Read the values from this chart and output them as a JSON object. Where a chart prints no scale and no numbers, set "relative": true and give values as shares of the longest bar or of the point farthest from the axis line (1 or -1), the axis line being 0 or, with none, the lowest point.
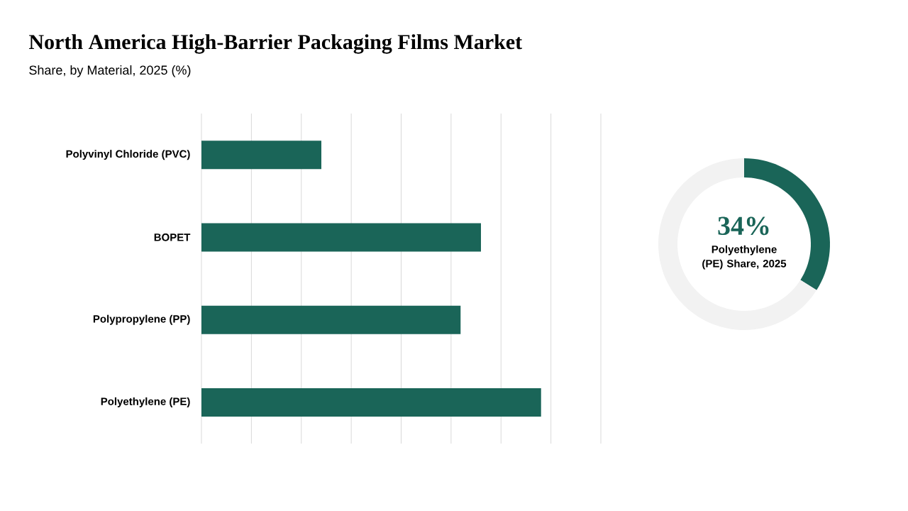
{
  "chart_data": [
    {
      "type": "bar",
      "title": "North America High-Barrier Packaging Films Market",
      "subtitle": "Share, by Material, 2025 (%)",
      "orientation": "horizontal",
      "relative": true,
      "categories": [
        "Polyvinyl Chloride (PVC)",
        "BOPET",
        "Polypropylene (PP)",
        "Polyethylene (PE)"
      ],
      "values": [
        0.353,
        0.823,
        0.763,
        1
      ],
      "color": "#1a6558",
      "grid": "x"
    },
    {
      "type": "donut",
      "title": "Polyethylene (PE) Share, 2025",
      "categories": [
        null,
        null
      ],
      "values": [
        34,
        66
      ],
      "colors": [
        "#1a6558",
        "#f2f2f2"
      ],
      "value_labels": [
        "34%",
        null
      ]
    }
  ]
}
